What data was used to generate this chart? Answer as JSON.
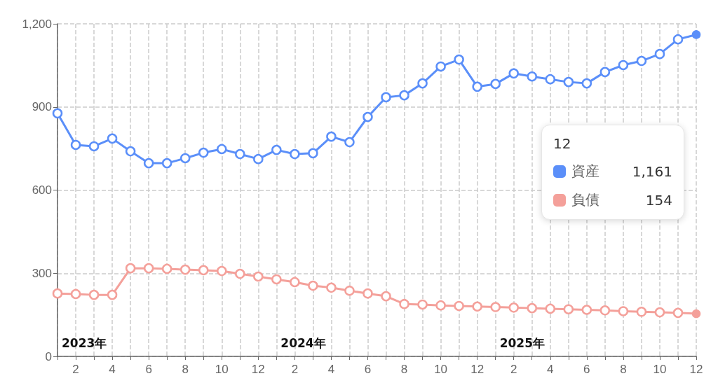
{
  "chart_data": {
    "type": "line",
    "categories": [
      null,
      "2",
      null,
      "4",
      null,
      "6",
      null,
      "8",
      null,
      "10",
      null,
      "12",
      null,
      "2",
      null,
      "4",
      null,
      "6",
      null,
      "8",
      null,
      "10",
      null,
      "12",
      null,
      "2",
      null,
      "4",
      null,
      "6",
      null,
      "8",
      null,
      "10",
      null,
      "12"
    ],
    "series": [
      {
        "name": "資産",
        "color": "#5b8ff9",
        "values": [
          877,
          763,
          758,
          786,
          740,
          697,
          697,
          715,
          735,
          748,
          730,
          712,
          745,
          730,
          733,
          793,
          773,
          864,
          935,
          942,
          985,
          1046,
          1071,
          973,
          983,
          1021,
          1010,
          1000,
          990,
          985,
          1026,
          1051,
          1066,
          1091,
          1144,
          1161
        ]
      },
      {
        "name": "負債",
        "color": "#f4a09a",
        "values": [
          227,
          225,
          222,
          222,
          318,
          318,
          316,
          313,
          311,
          308,
          298,
          288,
          278,
          268,
          255,
          248,
          237,
          227,
          217,
          189,
          187,
          184,
          182,
          180,
          178,
          176,
          174,
          172,
          170,
          168,
          166,
          163,
          161,
          159,
          157,
          154
        ]
      }
    ],
    "ylim": [
      0,
      1200
    ],
    "yticks": [
      0,
      300,
      600,
      900,
      {
        "value": 1200,
        "label": "1,200"
      }
    ],
    "annotations": [
      "2023年",
      "2024年",
      "2025年",
      "1,161",
      "154"
    ],
    "grid": true,
    "legend": "right",
    "marker": "circle",
    "line_style": "solid"
  }
}
